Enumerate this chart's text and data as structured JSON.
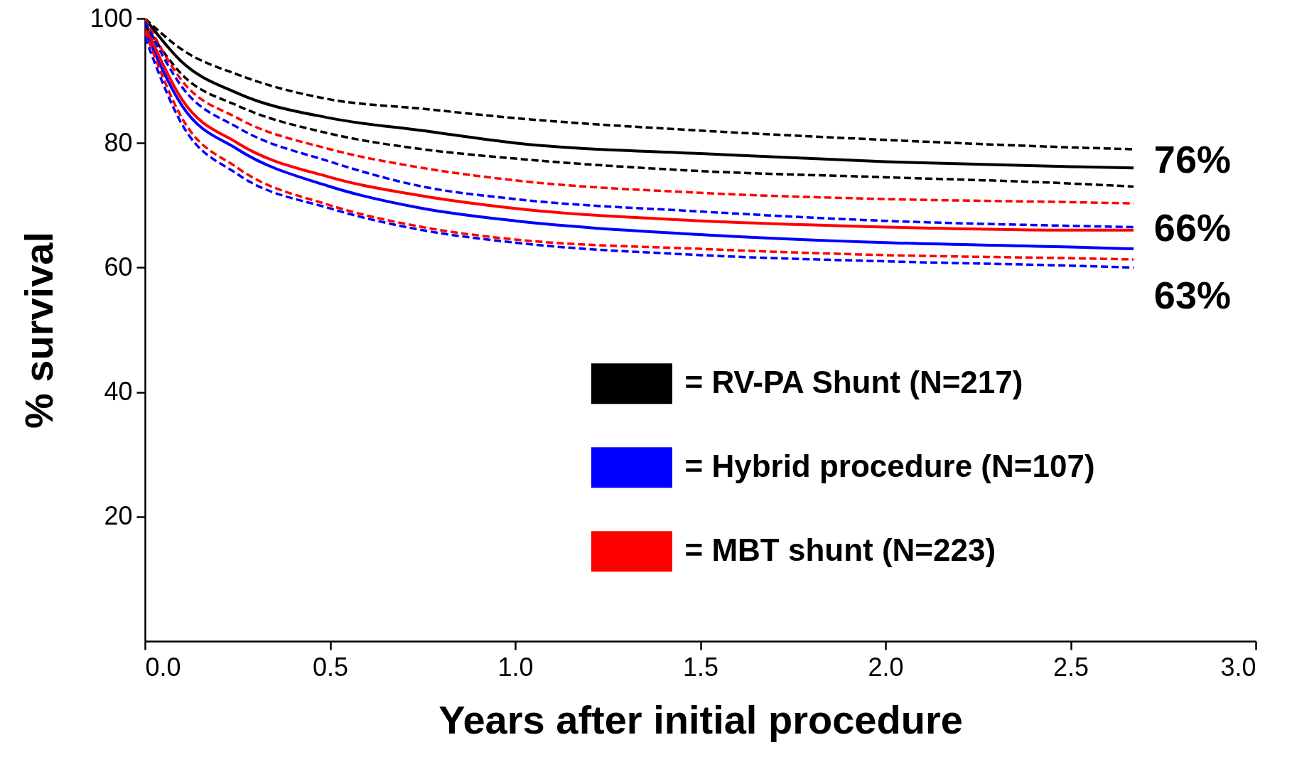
{
  "chart_data": {
    "type": "line",
    "xlabel": "Years after initial procedure",
    "ylabel": "% survival",
    "xlim": [
      0,
      3
    ],
    "ylim": [
      0,
      100
    ],
    "xticks": [
      {
        "value": 0,
        "label": "0.0"
      },
      0.5,
      {
        "value": 1,
        "label": "1.0"
      },
      1.5,
      {
        "value": 2,
        "label": "2.0"
      },
      2.5,
      {
        "value": 3,
        "label": "3.0"
      }
    ],
    "yticks": [
      20,
      40,
      60,
      80,
      100
    ],
    "x": [
      0,
      0.1,
      0.25,
      0.5,
      0.75,
      1.0,
      1.5,
      2.0,
      2.5,
      2.67
    ],
    "series": [
      {
        "color": "#000000",
        "line_style": "dashed",
        "values": [
          100,
          95,
          91,
          87,
          85.5,
          84,
          82,
          80.5,
          79.3,
          79
        ]
      },
      {
        "color": "#000000",
        "line_style": "dashed",
        "values": [
          99,
          91,
          86,
          81.5,
          79,
          77.5,
          75.5,
          74.5,
          73.5,
          73
        ]
      },
      {
        "color": "#ff0000",
        "line_style": "dashed",
        "values": [
          100,
          90,
          84,
          79,
          76,
          74,
          72,
          71,
          70.5,
          70.3
        ]
      },
      {
        "color": "#ff0000",
        "line_style": "dashed",
        "values": [
          98,
          84,
          76,
          70,
          66.5,
          64.5,
          63,
          62,
          61.5,
          61.3
        ]
      },
      {
        "color": "#0000ff",
        "line_style": "dashed",
        "values": [
          99.5,
          89,
          82.5,
          77,
          73,
          71,
          69,
          67.5,
          66.7,
          66.5
        ]
      },
      {
        "color": "#0000ff",
        "line_style": "dashed",
        "values": [
          97,
          83,
          75,
          69.5,
          66,
          64,
          62,
          61,
          60.3,
          60
        ]
      },
      {
        "name": "= RV-PA Shunt (N=217)",
        "color": "#000000",
        "line_style": "solid",
        "values": [
          100,
          93,
          88,
          84,
          82,
          80,
          78.3,
          77,
          76.2,
          76
        ]
      },
      {
        "name": "= Hybrid procedure (N=107)",
        "color": "#0000ff",
        "line_style": "solid",
        "values": [
          98,
          86,
          79,
          73,
          69.5,
          67.5,
          65.3,
          64,
          63.3,
          63
        ]
      },
      {
        "name": "= MBT shunt (N=223)",
        "color": "#ff0000",
        "line_style": "solid",
        "values": [
          99,
          87,
          80,
          74.5,
          71.5,
          69.5,
          67.5,
          66.5,
          66,
          66
        ]
      }
    ],
    "annotations": [
      "76%",
      "66%",
      "63%"
    ],
    "legend": "bottom right",
    "grid": false,
    "marker": "none"
  }
}
